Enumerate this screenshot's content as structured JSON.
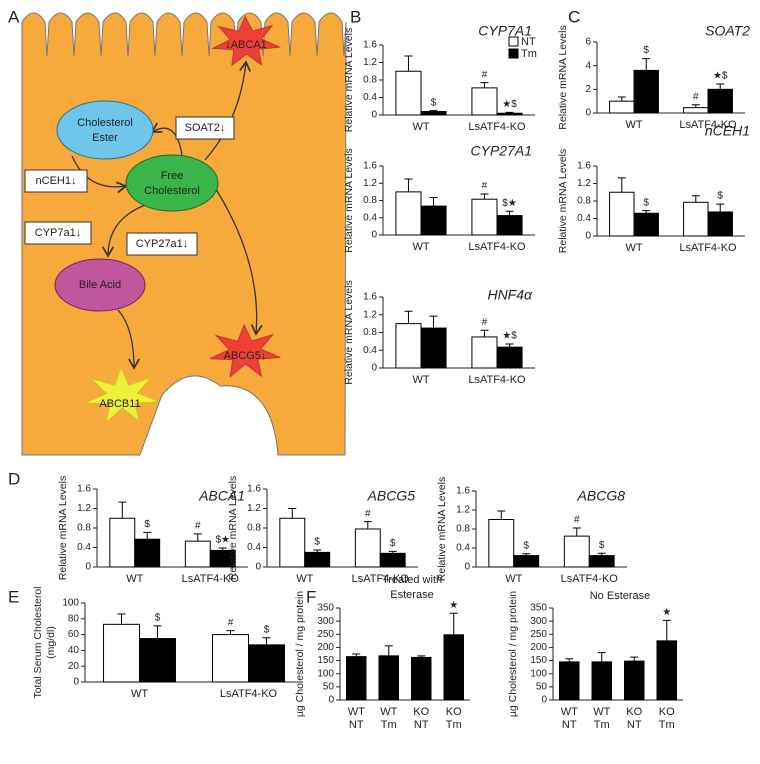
{
  "panel_labels": [
    "A",
    "B",
    "C",
    "D",
    "E",
    "F"
  ],
  "diagram": {
    "transporters": [
      "↓ABCA1",
      "ABCB11",
      "ABCG5↓"
    ],
    "metabolites": [
      [
        "Cholesterol",
        "Ester"
      ],
      [
        "Free",
        "Cholesterol"
      ],
      [
        "Bile Acid"
      ]
    ],
    "enzymes": [
      "SOAT2↓",
      "nCEH1↓",
      "CYP7a1↓",
      "CYP27a1↓"
    ]
  },
  "chart_data": [
    {
      "type": "bar",
      "title": "CYP7A1",
      "y_label": "Relative mRNA Levels",
      "categories": [
        "WT",
        "LsATF4-KO"
      ],
      "series": [
        {
          "name": "NT",
          "color": "#ffffff",
          "values": [
            1.0,
            0.62
          ],
          "errors": [
            0.35,
            0.12
          ],
          "annotations": [
            null,
            "#"
          ]
        },
        {
          "name": "Tm",
          "color": "#000000",
          "values": [
            0.08,
            0.04
          ],
          "errors": [
            0.02,
            0.02
          ],
          "annotations": [
            "$",
            "★$"
          ]
        }
      ],
      "ylim": [
        0,
        1.6
      ],
      "yticks": [
        0,
        0.4,
        0.8,
        1.2,
        1.6
      ],
      "legend": "upper right"
    },
    {
      "type": "bar",
      "title": "CYP27A1",
      "y_label": "Relative mRNA Levels",
      "categories": [
        "WT",
        "LsATF4-KO"
      ],
      "series": [
        {
          "color": "#ffffff",
          "values": [
            1.0,
            0.83
          ],
          "errors": [
            0.3,
            0.12
          ],
          "annotations": [
            null,
            "#"
          ]
        },
        {
          "color": "#000000",
          "values": [
            0.67,
            0.45
          ],
          "errors": [
            0.2,
            0.1
          ],
          "annotations": [
            null,
            "$★"
          ]
        }
      ],
      "ylim": [
        0,
        1.6
      ],
      "yticks": [
        0,
        0.4,
        0.8,
        1.2,
        1.6
      ]
    },
    {
      "type": "bar",
      "title": "HNF4α",
      "y_label": "Relative mRNA Levels",
      "categories": [
        "WT",
        "LsATF4-KO"
      ],
      "series": [
        {
          "color": "#ffffff",
          "values": [
            1.0,
            0.7
          ],
          "errors": [
            0.28,
            0.15
          ],
          "annotations": [
            null,
            "#"
          ]
        },
        {
          "color": "#000000",
          "values": [
            0.9,
            0.47
          ],
          "errors": [
            0.27,
            0.07
          ],
          "annotations": [
            null,
            "★$"
          ]
        }
      ],
      "ylim": [
        0,
        1.6
      ],
      "yticks": [
        0,
        0.4,
        0.8,
        1.2,
        1.6
      ]
    },
    {
      "type": "bar",
      "title": "SOAT2",
      "y_label": "Relative mRNA Levels",
      "categories": [
        "WT",
        "LsATF4-KO"
      ],
      "series": [
        {
          "color": "#ffffff",
          "values": [
            1.0,
            0.45
          ],
          "errors": [
            0.35,
            0.25
          ],
          "annotations": [
            null,
            "#"
          ]
        },
        {
          "color": "#000000",
          "values": [
            3.6,
            2.0
          ],
          "errors": [
            1.0,
            0.45
          ],
          "annotations": [
            "$",
            "★$"
          ]
        }
      ],
      "ylim": [
        0,
        6
      ],
      "yticks": [
        0,
        2,
        4,
        6
      ]
    },
    {
      "type": "bar",
      "title": "nCEH1",
      "y_label": "Relative mRNA Levels",
      "categories": [
        "WT",
        "LsATF4-KO"
      ],
      "series": [
        {
          "color": "#ffffff",
          "values": [
            1.0,
            0.77
          ],
          "errors": [
            0.33,
            0.15
          ],
          "annotations": [
            null,
            null
          ]
        },
        {
          "color": "#000000",
          "values": [
            0.52,
            0.55
          ],
          "errors": [
            0.06,
            0.18
          ],
          "annotations": [
            "$",
            "$"
          ]
        }
      ],
      "ylim": [
        0,
        1.6
      ],
      "yticks": [
        0,
        0.4,
        0.8,
        1.2,
        1.6
      ]
    },
    {
      "type": "bar",
      "title": "ABCA1",
      "y_label": "Relative mRNA Levels",
      "categories": [
        "WT",
        "LsATF4-KO"
      ],
      "series": [
        {
          "color": "#ffffff",
          "values": [
            1.0,
            0.53
          ],
          "errors": [
            0.33,
            0.15
          ],
          "annotations": [
            null,
            "#"
          ]
        },
        {
          "color": "#000000",
          "values": [
            0.57,
            0.34
          ],
          "errors": [
            0.14,
            0.05
          ],
          "annotations": [
            "$",
            "$★"
          ]
        }
      ],
      "ylim": [
        0,
        1.6
      ],
      "yticks": [
        0,
        0.4,
        0.8,
        1.2,
        1.6
      ]
    },
    {
      "type": "bar",
      "title": "ABCG5",
      "y_label": "Relative mRNA Levels",
      "categories": [
        "WT",
        "LsATF4-KO"
      ],
      "series": [
        {
          "color": "#ffffff",
          "values": [
            1.0,
            0.78
          ],
          "errors": [
            0.2,
            0.15
          ],
          "annotations": [
            null,
            "#"
          ]
        },
        {
          "color": "#000000",
          "values": [
            0.3,
            0.28
          ],
          "errors": [
            0.05,
            0.04
          ],
          "annotations": [
            "$",
            "$"
          ]
        }
      ],
      "ylim": [
        0,
        1.6
      ],
      "yticks": [
        0,
        0.4,
        0.8,
        1.2,
        1.6
      ]
    },
    {
      "type": "bar",
      "title": "ABCG8",
      "y_label": "Relative mRNA Levels",
      "categories": [
        "WT",
        "LsATF4-KO"
      ],
      "series": [
        {
          "color": "#ffffff",
          "values": [
            1.0,
            0.65
          ],
          "errors": [
            0.18,
            0.17
          ],
          "annotations": [
            null,
            "#"
          ]
        },
        {
          "color": "#000000",
          "values": [
            0.24,
            0.24
          ],
          "errors": [
            0.04,
            0.05
          ],
          "annotations": [
            "$",
            "$"
          ]
        }
      ],
      "ylim": [
        0,
        1.6
      ],
      "yticks": [
        0,
        0.4,
        0.8,
        1.2,
        1.6
      ]
    },
    {
      "type": "bar",
      "y_label": [
        "Total Serum Cholesterol",
        "(mg/dl)"
      ],
      "categories": [
        "WT",
        "LsATF4-KO"
      ],
      "series": [
        {
          "color": "#ffffff",
          "values": [
            73,
            60
          ],
          "errors": [
            13,
            5
          ],
          "annotations": [
            null,
            "#"
          ]
        },
        {
          "color": "#000000",
          "values": [
            55,
            47
          ],
          "errors": [
            16,
            9
          ],
          "annotations": [
            "$",
            "$"
          ]
        }
      ],
      "ylim": [
        0,
        100
      ],
      "yticks": [
        0,
        20,
        40,
        60,
        80,
        100
      ]
    },
    {
      "type": "bar",
      "title": [
        "Treated with",
        "Esterase"
      ],
      "y_label": "µg Cholesterol / mg protein",
      "categories": [
        [
          "WT",
          "NT"
        ],
        [
          "WT",
          "Tm"
        ],
        [
          "KO",
          "NT"
        ],
        [
          "KO",
          "Tm"
        ]
      ],
      "series": [
        {
          "color": "#000000",
          "values": [
            165,
            168,
            162,
            248
          ],
          "errors": [
            10,
            38,
            6,
            82
          ],
          "annotations": [
            null,
            null,
            null,
            "★"
          ]
        }
      ],
      "ylim": [
        0,
        350
      ],
      "yticks": [
        0,
        50,
        100,
        150,
        200,
        250,
        300,
        350
      ]
    },
    {
      "type": "bar",
      "title": "No Esterase",
      "y_label": "µg Cholesterol / mg protein",
      "categories": [
        [
          "WT",
          "NT"
        ],
        [
          "WT",
          "Tm"
        ],
        [
          "KO",
          "NT"
        ],
        [
          "KO",
          "Tm"
        ]
      ],
      "series": [
        {
          "color": "#000000",
          "values": [
            145,
            145,
            148,
            225
          ],
          "errors": [
            12,
            35,
            15,
            78
          ],
          "annotations": [
            null,
            null,
            null,
            "★"
          ]
        }
      ],
      "ylim": [
        0,
        350
      ],
      "yticks": [
        0,
        50,
        100,
        150,
        200,
        250,
        300,
        350
      ]
    }
  ]
}
